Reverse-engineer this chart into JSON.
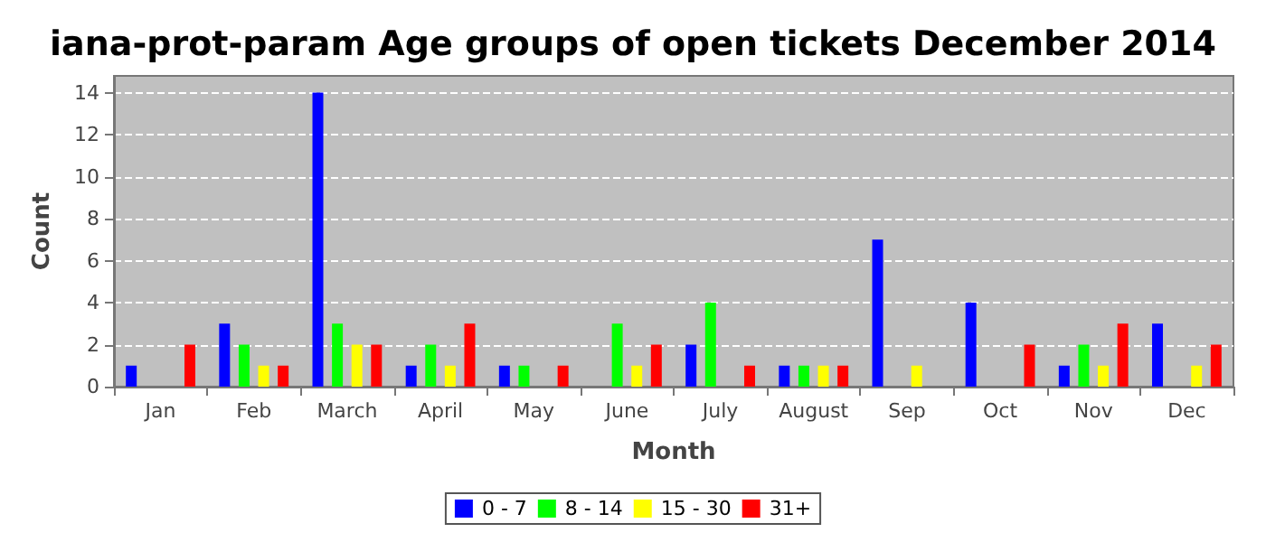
{
  "chart_data": {
    "type": "bar",
    "title": "iana-prot-param Age groups of open tickets December 2014",
    "xlabel": "Month",
    "ylabel": "Count",
    "categories": [
      "Jan",
      "Feb",
      "March",
      "April",
      "May",
      "June",
      "July",
      "August",
      "Sep",
      "Oct",
      "Nov",
      "Dec"
    ],
    "series": [
      {
        "name": "0 - 7",
        "color": "#0000ff",
        "values": [
          1,
          3,
          14,
          1,
          1,
          0,
          2,
          1,
          7,
          4,
          1,
          3
        ]
      },
      {
        "name": "8 - 14",
        "color": "#00ff00",
        "values": [
          0,
          2,
          3,
          2,
          1,
          3,
          4,
          1,
          0,
          0,
          2,
          0
        ]
      },
      {
        "name": "15 - 30",
        "color": "#ffff00",
        "values": [
          0,
          1,
          2,
          1,
          0,
          1,
          0,
          1,
          1,
          0,
          1,
          1
        ]
      },
      {
        "name": "31+",
        "color": "#ff0000",
        "values": [
          2,
          1,
          2,
          3,
          1,
          2,
          1,
          1,
          0,
          2,
          3,
          2
        ]
      }
    ],
    "ylim": [
      0,
      14.8
    ],
    "yticks": [
      0,
      2,
      4,
      6,
      8,
      10,
      12,
      14
    ],
    "grid": "y",
    "legend": "bottom"
  }
}
